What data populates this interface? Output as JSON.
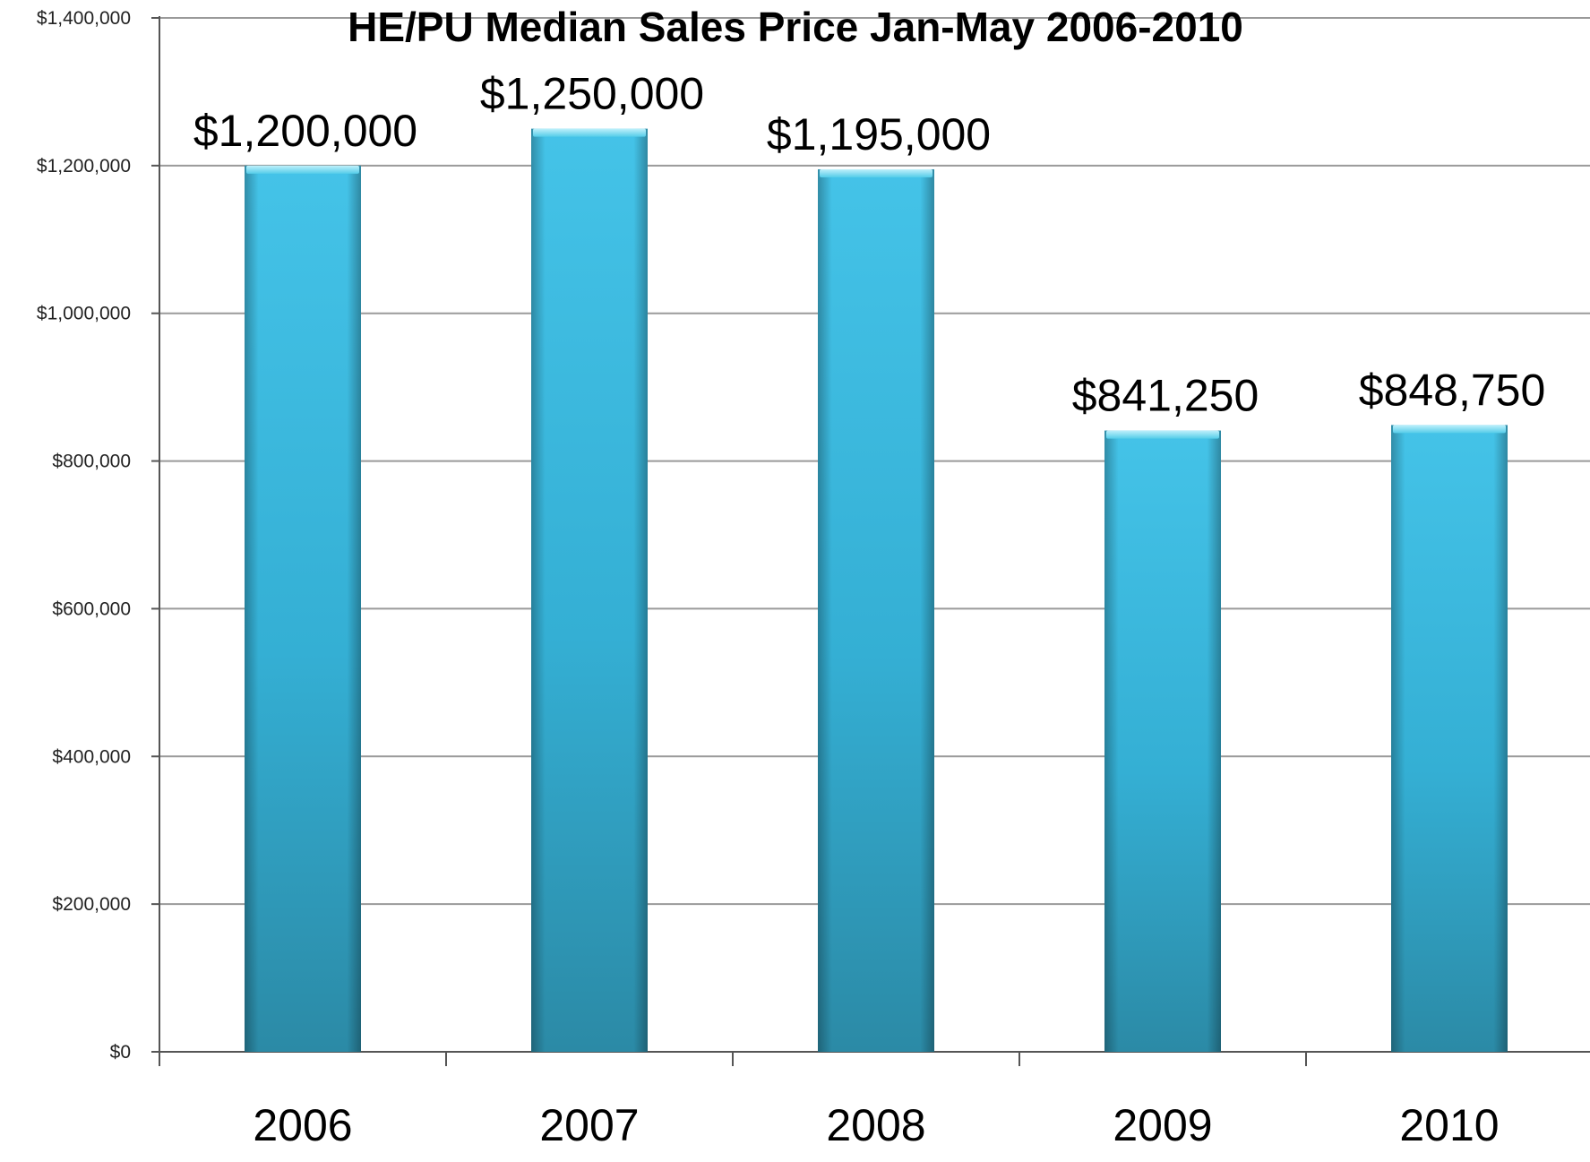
{
  "chart_data": {
    "type": "bar",
    "title": "HE/PU Median Sales Price Jan-May 2006-2010",
    "xlabel": "",
    "ylabel": "",
    "categories": [
      "2006",
      "2007",
      "2008",
      "2009",
      "2010"
    ],
    "values": [
      1200000,
      1250000,
      1195000,
      841250,
      848750
    ],
    "value_labels": [
      "$1,200,000",
      "$1,250,000",
      "$1,195,000",
      "$841,250",
      "$848,750"
    ],
    "ylim": [
      0,
      1400000
    ],
    "yticks": [
      0,
      200000,
      400000,
      600000,
      800000,
      1000000,
      1200000,
      1400000
    ],
    "ytick_labels": [
      "$0",
      "$200,000",
      "$400,000",
      "$600,000",
      "$800,000",
      "$1,000,000",
      "$1,200,000",
      "$1,400,000"
    ],
    "grid": true,
    "legend": "none",
    "colors": {
      "bar_light": "#44c3e8",
      "bar_mid": "#34afd4",
      "bar_dark": "#2b8aa6",
      "grid": "#9a9a9a",
      "axis": "#555555"
    }
  }
}
